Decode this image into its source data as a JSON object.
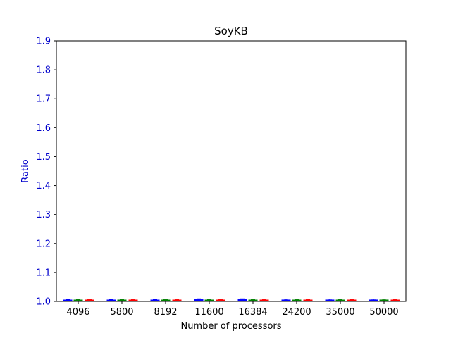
{
  "chart_data": {
    "type": "box",
    "title": "SoyKB",
    "xlabel": "Number of processors",
    "ylabel": "Ratio",
    "categories": [
      "4096",
      "5800",
      "8192",
      "11600",
      "16384",
      "24200",
      "35000",
      "50000"
    ],
    "yticks": [
      "1.0",
      "1.1",
      "1.2",
      "1.3",
      "1.4",
      "1.5",
      "1.6",
      "1.7",
      "1.8",
      "1.9"
    ],
    "ylim": [
      1.0,
      1.9
    ],
    "grid": false,
    "series": [
      {
        "color": "#0000ff",
        "boxes": [
          {
            "min": 1.0,
            "q1": 1.0,
            "median": 1.002,
            "q3": 1.004,
            "max": 1.007
          },
          {
            "min": 1.0,
            "q1": 1.0,
            "median": 1.002,
            "q3": 1.004,
            "max": 1.007
          },
          {
            "min": 1.0,
            "q1": 1.0,
            "median": 1.002,
            "q3": 1.004,
            "max": 1.007
          },
          {
            "min": 1.0,
            "q1": 1.0,
            "median": 1.003,
            "q3": 1.006,
            "max": 1.009
          },
          {
            "min": 1.0,
            "q1": 1.0,
            "median": 1.003,
            "q3": 1.006,
            "max": 1.009
          },
          {
            "min": 1.0,
            "q1": 1.0,
            "median": 1.003,
            "q3": 1.005,
            "max": 1.008
          },
          {
            "min": 1.0,
            "q1": 1.0,
            "median": 1.003,
            "q3": 1.005,
            "max": 1.008
          },
          {
            "min": 1.0,
            "q1": 1.0,
            "median": 1.003,
            "q3": 1.005,
            "max": 1.008
          }
        ]
      },
      {
        "color": "#008000",
        "boxes": [
          {
            "min": 1.0,
            "q1": 1.0,
            "median": 1.001,
            "q3": 1.003,
            "max": 1.006
          },
          {
            "min": 1.0,
            "q1": 1.0,
            "median": 1.001,
            "q3": 1.003,
            "max": 1.006
          },
          {
            "min": 1.0,
            "q1": 1.0,
            "median": 1.001,
            "q3": 1.003,
            "max": 1.006
          },
          {
            "min": 1.0,
            "q1": 1.0,
            "median": 1.001,
            "q3": 1.003,
            "max": 1.006
          },
          {
            "min": 1.0,
            "q1": 1.0,
            "median": 1.001,
            "q3": 1.003,
            "max": 1.006
          },
          {
            "min": 1.0,
            "q1": 1.0,
            "median": 1.001,
            "q3": 1.003,
            "max": 1.006
          },
          {
            "min": 1.0,
            "q1": 1.0,
            "median": 1.001,
            "q3": 1.003,
            "max": 1.006
          },
          {
            "min": 1.0,
            "q1": 1.0,
            "median": 1.002,
            "q3": 1.005,
            "max": 1.008
          }
        ]
      },
      {
        "color": "#ff0000",
        "boxes": [
          {
            "min": 1.0,
            "q1": 1.0,
            "median": 1.001,
            "q3": 1.003,
            "max": 1.006
          },
          {
            "min": 1.0,
            "q1": 1.0,
            "median": 1.001,
            "q3": 1.003,
            "max": 1.006
          },
          {
            "min": 1.0,
            "q1": 1.0,
            "median": 1.001,
            "q3": 1.003,
            "max": 1.006
          },
          {
            "min": 1.0,
            "q1": 1.0,
            "median": 1.001,
            "q3": 1.003,
            "max": 1.006
          },
          {
            "min": 1.0,
            "q1": 1.0,
            "median": 1.001,
            "q3": 1.003,
            "max": 1.006
          },
          {
            "min": 1.0,
            "q1": 1.0,
            "median": 1.001,
            "q3": 1.003,
            "max": 1.006
          },
          {
            "min": 1.0,
            "q1": 1.0,
            "median": 1.001,
            "q3": 1.003,
            "max": 1.006
          },
          {
            "min": 1.0,
            "q1": 1.0,
            "median": 1.001,
            "q3": 1.003,
            "max": 1.006
          }
        ]
      }
    ]
  }
}
